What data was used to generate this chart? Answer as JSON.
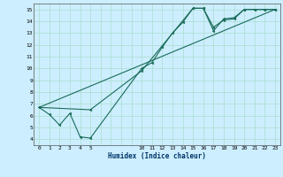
{
  "title": "",
  "xlabel": "Humidex (Indice chaleur)",
  "background_color": "#cceeff",
  "line_color": "#1a6b5a",
  "xlim": [
    -0.5,
    23.5
  ],
  "ylim": [
    3.5,
    15.5
  ],
  "xtick_positions": [
    0,
    1,
    2,
    3,
    4,
    5,
    10,
    11,
    12,
    13,
    14,
    15,
    16,
    17,
    18,
    19,
    20,
    21,
    22,
    23
  ],
  "xtick_labels": [
    "0",
    "1",
    "2",
    "3",
    "4",
    "5",
    "10",
    "11",
    "12",
    "13",
    "14",
    "15",
    "16",
    "17",
    "18",
    "19",
    "20",
    "21",
    "22",
    "23"
  ],
  "ytick_positions": [
    4,
    5,
    6,
    7,
    8,
    9,
    10,
    11,
    12,
    13,
    14,
    15
  ],
  "ytick_labels": [
    "4",
    "5",
    "6",
    "7",
    "8",
    "9",
    "10",
    "11",
    "12",
    "13",
    "14",
    "15"
  ],
  "grid_color": "#aaddcc",
  "line1_x": [
    0,
    1,
    2,
    3,
    4,
    5,
    10,
    11,
    12,
    13,
    14,
    15,
    16,
    17,
    18,
    19,
    20,
    21,
    22,
    23
  ],
  "line1_y": [
    6.7,
    6.1,
    5.2,
    6.2,
    4.2,
    4.1,
    10.0,
    10.5,
    11.8,
    13.0,
    13.9,
    15.1,
    15.1,
    13.2,
    14.2,
    14.3,
    15.0,
    15.0,
    15.0,
    15.0
  ],
  "line2_x": [
    0,
    5,
    10,
    15,
    16,
    17,
    18,
    19,
    20,
    21,
    22,
    23
  ],
  "line2_y": [
    6.7,
    6.5,
    9.8,
    15.1,
    15.1,
    13.5,
    14.1,
    14.2,
    15.0,
    15.0,
    15.0,
    15.0
  ],
  "line3_x": [
    0,
    23
  ],
  "line3_y": [
    6.7,
    15.0
  ],
  "lw": 0.8,
  "ms": 2.0
}
